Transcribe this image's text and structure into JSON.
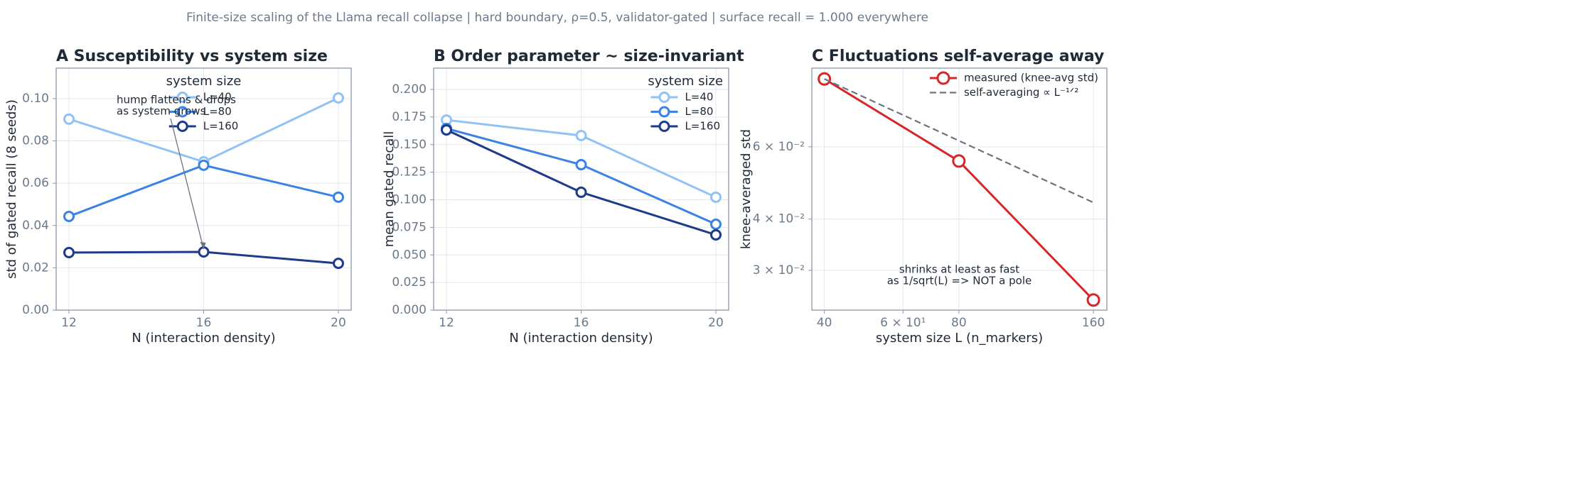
{
  "title": "Finite-size scaling of the Llama recall collapse  |  hard boundary, ρ=0.5, validator-gated  |  surface recall = 1.000 everywhere",
  "chart_data": [
    {
      "type": "line",
      "title": "A  Susceptibility vs system size",
      "xlabel": "N (interaction density)",
      "ylabel": "std of gated recall (8 seeds)",
      "x": [
        12,
        16,
        20
      ],
      "xlim": [
        11.62,
        20.38
      ],
      "xticks": [
        12,
        16,
        20
      ],
      "ylim": [
        0,
        0.1144
      ],
      "yticks": [
        {
          "value": 0,
          "label": "0.00"
        },
        {
          "value": 0.02,
          "label": "0.02"
        },
        {
          "value": 0.04,
          "label": "0.04"
        },
        {
          "value": 0.06,
          "label": "0.06"
        },
        {
          "value": 0.08,
          "label": "0.08"
        },
        {
          "value": 0.1,
          "label": "0.10"
        }
      ],
      "grid": true,
      "legend": "upper center",
      "legend_title": "system size",
      "series": [
        {
          "name": "L=40",
          "color": "#90c2f5",
          "values": [
            0.0903,
            0.0701,
            0.1003
          ]
        },
        {
          "name": "L=80",
          "color": "#3b82e6",
          "values": [
            0.0443,
            0.0685,
            0.0534
          ]
        },
        {
          "name": "L=160",
          "color": "#1e3a8a",
          "values": [
            0.0272,
            0.0275,
            0.0221
          ]
        }
      ],
      "annotation": [
        "hump flattens & drops",
        "as system grows"
      ]
    },
    {
      "type": "line",
      "title": "B  Order parameter ~ size-invariant",
      "xlabel": "N (interaction density)",
      "ylabel": "mean gated recall",
      "x": [
        12,
        16,
        20
      ],
      "xlim": [
        11.62,
        20.38
      ],
      "xticks": [
        12,
        16,
        20
      ],
      "ylim": [
        0,
        0.2193
      ],
      "yticks": [
        {
          "value": 0,
          "label": "0.000"
        },
        {
          "value": 0.025,
          "label": "0.025"
        },
        {
          "value": 0.05,
          "label": "0.050"
        },
        {
          "value": 0.075,
          "label": "0.075"
        },
        {
          "value": 0.1,
          "label": "0.100"
        },
        {
          "value": 0.125,
          "label": "0.125"
        },
        {
          "value": 0.15,
          "label": "0.150"
        },
        {
          "value": 0.175,
          "label": "0.175"
        },
        {
          "value": 0.2,
          "label": "0.200"
        }
      ],
      "grid": true,
      "legend": "upper right",
      "legend_title": "system size",
      "series": [
        {
          "name": "L=40",
          "color": "#90c2f5",
          "values": [
            0.1723,
            0.1582,
            0.1023
          ]
        },
        {
          "name": "L=80",
          "color": "#3b82e6",
          "values": [
            0.1646,
            0.1318,
            0.0778
          ]
        },
        {
          "name": "L=160",
          "color": "#1e3a8a",
          "values": [
            0.1633,
            0.1068,
            0.0682
          ]
        }
      ]
    },
    {
      "type": "line",
      "title": "C  Fluctuations self-average away",
      "xlabel": "system size L (n_markers)",
      "ylabel": "knee-averaged std",
      "x": [
        40,
        80,
        160
      ],
      "xlim": [
        37.5,
        171.5
      ],
      "log_x": true,
      "log_y": true,
      "xticks": [
        40,
        {
          "value": 60,
          "label": "6 × 10¹"
        },
        80,
        160
      ],
      "ylim": [
        0.024,
        0.0933
      ],
      "yticks": [
        {
          "value": 0.03,
          "label": "3 × 10⁻²"
        },
        {
          "value": 0.04,
          "label": "4 × 10⁻²"
        },
        {
          "value": 0.06,
          "label": "6 × 10⁻²"
        }
      ],
      "grid": true,
      "legend": "upper right",
      "series": [
        {
          "name": "measured (knee-avg std)",
          "color": "#d62728",
          "values": [
            0.0878,
            0.0554,
            0.0254
          ],
          "marker": true,
          "large": true
        },
        {
          "name": "self-averaging  ∝ L⁻¹ᐟ²",
          "color": "#6b7280",
          "values": [
            0.0878,
            0.0621,
            0.0439
          ],
          "marker": false,
          "dashed": true
        }
      ],
      "annotation": [
        "shrinks at least as fast",
        "as 1/sqrt(L)  =>  NOT a pole"
      ]
    }
  ]
}
